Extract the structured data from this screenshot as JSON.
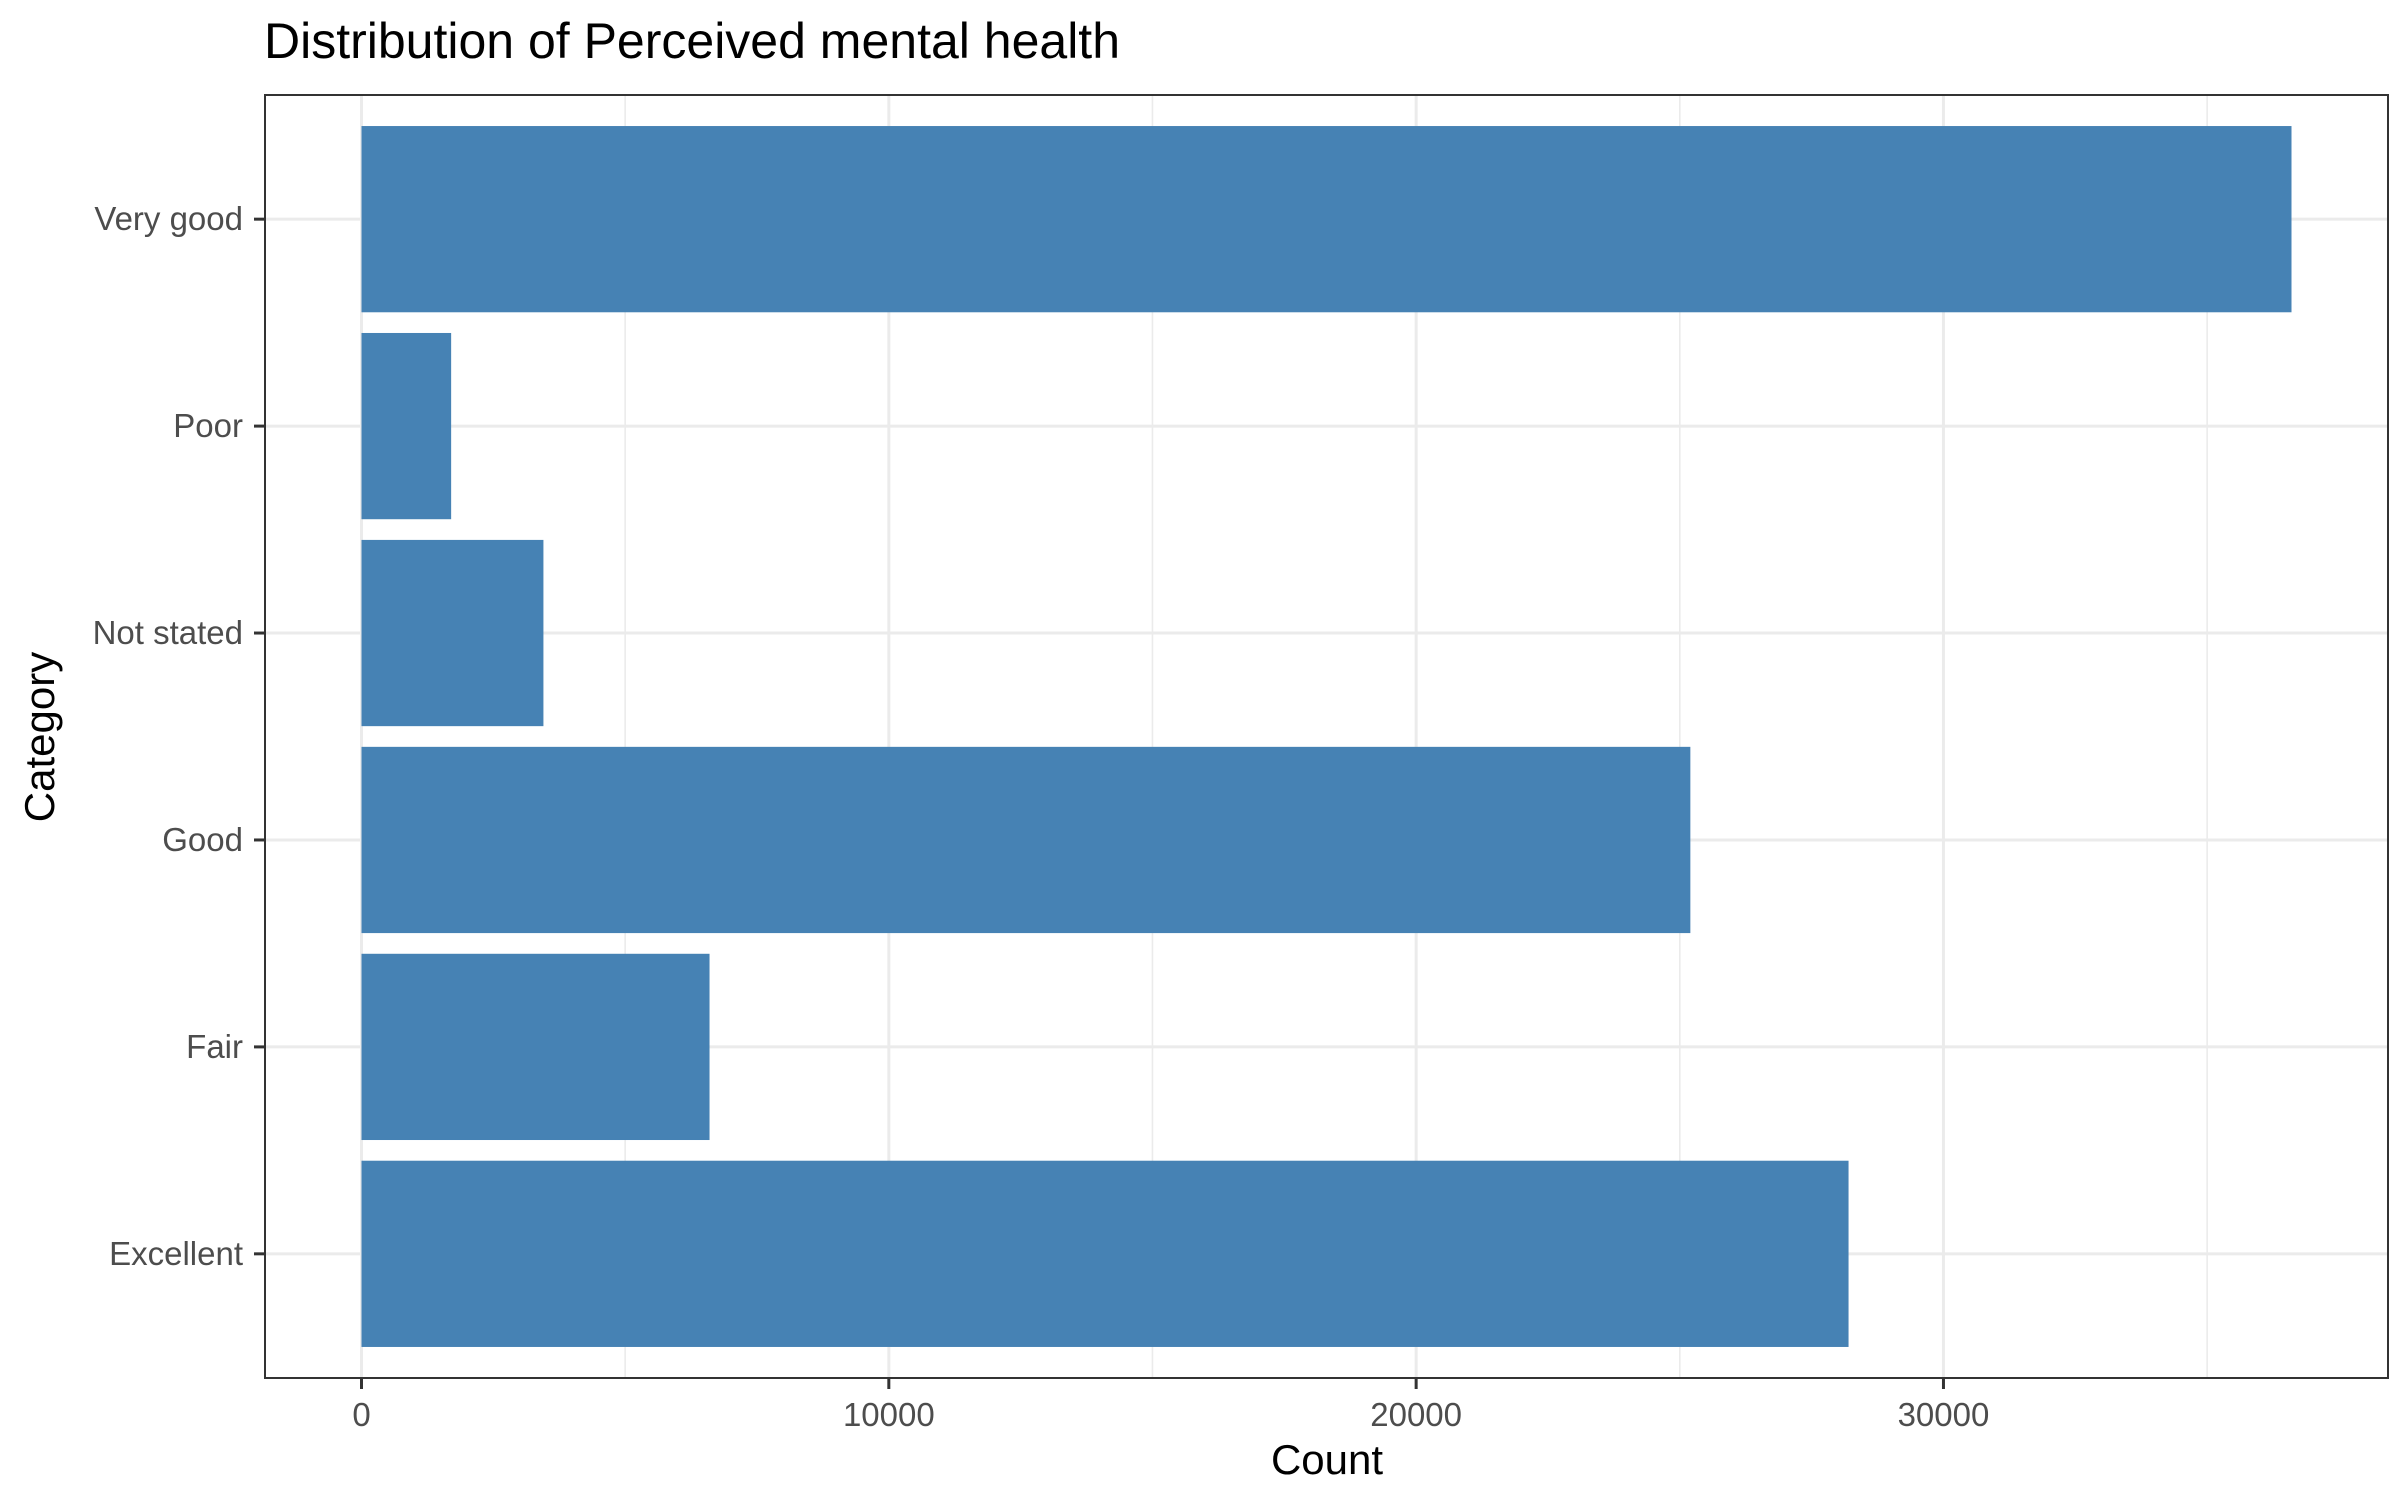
{
  "chart_data": {
    "type": "bar",
    "orientation": "horizontal",
    "title": "Distribution of Perceived mental health",
    "xlabel": "Count",
    "ylabel": "Category",
    "categories": [
      "Excellent",
      "Fair",
      "Good",
      "Not stated",
      "Poor",
      "Very good"
    ],
    "values": [
      28200,
      6600,
      25200,
      3450,
      1700,
      36600
    ],
    "x_ticks": [
      0,
      10000,
      20000,
      30000
    ],
    "x_tick_labels": [
      "0",
      "10000",
      "20000",
      "30000"
    ],
    "xlim": [
      -1830,
      38430
    ],
    "bar_color": "#4682b4",
    "grid": true,
    "legend": "none",
    "theme": "bw"
  }
}
